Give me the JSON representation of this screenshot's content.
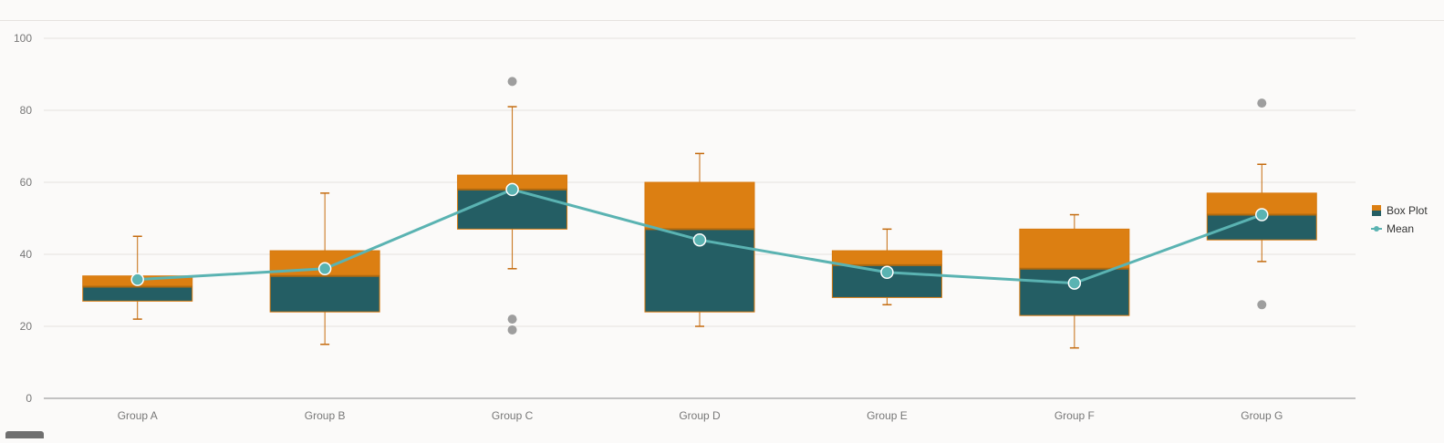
{
  "chart_data": {
    "type": "box",
    "title": "",
    "xlabel": "",
    "ylabel": "",
    "ylim": [
      0,
      100
    ],
    "yticks": [
      0,
      20,
      40,
      60,
      80,
      100
    ],
    "grid": true,
    "legend_position": "right",
    "categories": [
      "Group A",
      "Group B",
      "Group C",
      "Group D",
      "Group E",
      "Group F",
      "Group G"
    ],
    "boxes": [
      {
        "min": 22,
        "q1": 27,
        "median": 31,
        "q3": 34,
        "max": 45,
        "outliers": []
      },
      {
        "min": 15,
        "q1": 24,
        "median": 34,
        "q3": 41,
        "max": 57,
        "outliers": []
      },
      {
        "min": 36,
        "q1": 47,
        "median": 58,
        "q3": 62,
        "max": 81,
        "outliers": [
          88,
          22,
          19
        ]
      },
      {
        "min": 20,
        "q1": 24,
        "median": 47,
        "q3": 60,
        "max": 68,
        "outliers": []
      },
      {
        "min": 26,
        "q1": 28,
        "median": 37,
        "q3": 41,
        "max": 47,
        "outliers": []
      },
      {
        "min": 14,
        "q1": 23,
        "median": 36,
        "q3": 47,
        "max": 51,
        "outliers": []
      },
      {
        "min": 38,
        "q1": 44,
        "median": 51,
        "q3": 57,
        "max": 65,
        "outliers": [
          82,
          26
        ]
      }
    ],
    "mean": [
      33,
      36,
      58,
      44,
      35,
      32,
      51
    ],
    "series": [
      {
        "name": "Box Plot",
        "color_upper": "#dc7f12",
        "color_lower": "#245e64"
      },
      {
        "name": "Mean",
        "color": "#5ab3b2"
      }
    ],
    "colors": {
      "whisker": "#c46b0e",
      "outlier": "#9e9e9e",
      "grid": "#e6e3df",
      "axis": "#8a8a8a"
    }
  }
}
